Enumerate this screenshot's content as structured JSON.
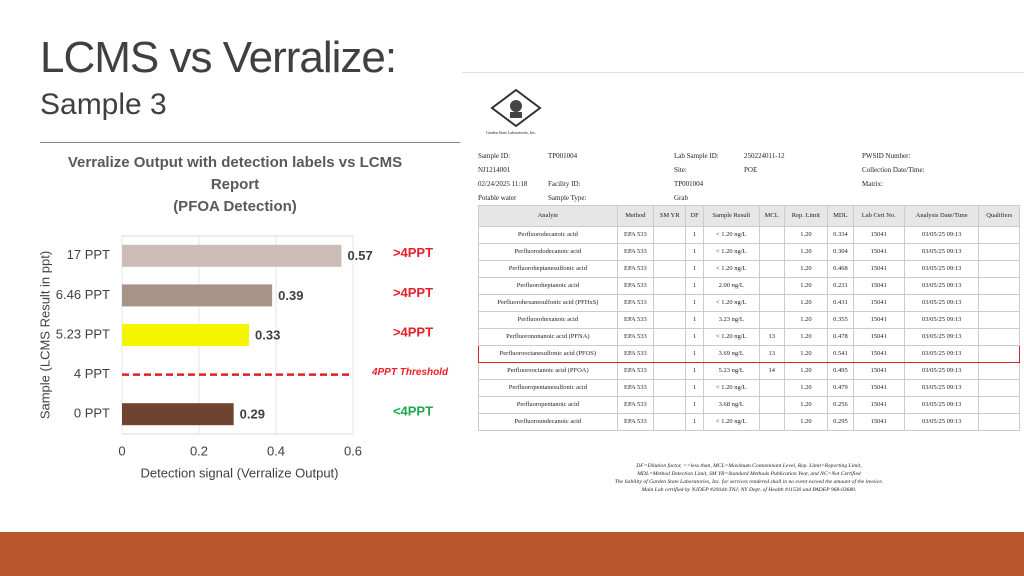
{
  "slide": {
    "title": "LCMS vs Verralize:",
    "subtitle": "Sample 3"
  },
  "chart_data": {
    "type": "bar",
    "orientation": "horizontal",
    "title": "Verralize Output with detection labels vs LCMS Report\n(PFOA Detection)",
    "xlabel": "Detection signal (Verralize Output)",
    "ylabel": "Sample (LCMS Result in ppt)",
    "categories": [
      "17 PPT",
      "6.46 PPT",
      "5.23 PPT",
      "4 PPT",
      "0 PPT"
    ],
    "values": [
      0.57,
      0.39,
      0.33,
      null,
      0.29
    ],
    "colors": [
      "#cbbdb5",
      "#a99288",
      "#f5f500",
      null,
      "#6e4330"
    ],
    "threshold_color": "#e02020",
    "annotations": [
      {
        "text": ">4PPT",
        "color": "#e8202a"
      },
      {
        "text": ">4PPT",
        "color": "#e8202a"
      },
      {
        "text": ">4PPT",
        "color": "#e8202a"
      },
      {
        "text": "4PPT Threshold",
        "color": "#e8202a",
        "italic": true
      },
      {
        "text": "<4PPT",
        "color": "#1aa84a"
      }
    ],
    "xlim": [
      0,
      0.6
    ],
    "xticks": [
      0,
      0.2,
      0.4,
      0.6
    ],
    "grid": true
  },
  "report": {
    "lab": "Garden State Laboratories, Inc.",
    "info": [
      {
        "label": "Sample ID:",
        "value": "TP001004"
      },
      {
        "label": "Lab Sample ID:",
        "value": "250224011-12"
      },
      {
        "label": "PWSID Number:",
        "value": "NJ1214001"
      },
      {
        "label": "Site:",
        "value": "POE"
      },
      {
        "label": "Collection Date/Time:",
        "value": "02/24/2025   11:18"
      },
      {
        "label": "Facility ID:",
        "value": "TP001004"
      },
      {
        "label": "Matrix:",
        "value": "Potable water"
      },
      {
        "label": "Sample Type:",
        "value": "Grab"
      }
    ],
    "table": {
      "columns": [
        "Analyte",
        "Method",
        "SM YR",
        "DF",
        "Sample Result",
        "MCL",
        "Rep. Limit",
        "MDL",
        "Lab Cert No.",
        "Analysis Date/Time",
        "Qualifiers"
      ],
      "rows": [
        {
          "cells": [
            "Perfluorodecanoic acid",
            "EPA 533",
            null,
            "1",
            "< 1.20 ng/L",
            null,
            "1.20",
            "0.334",
            "15041",
            "03/05/25 09:13",
            null
          ]
        },
        {
          "cells": [
            "Perfluorododecanoic acid",
            "EPA 533",
            null,
            "1",
            "< 1.20 ng/L",
            null,
            "1.20",
            "0.304",
            "15041",
            "03/05/25 09:13",
            null
          ]
        },
        {
          "cells": [
            "Perfluoroheptanesulfonic acid",
            "EPA 533",
            null,
            "1",
            "< 1.20 ng/L",
            null,
            "1.20",
            "0.468",
            "15041",
            "03/05/25 09:13",
            null
          ]
        },
        {
          "cells": [
            "Perfluoroheptanoic acid",
            "EPA 533",
            null,
            "1",
            "2.00 ng/L",
            null,
            "1.20",
            "0.231",
            "15041",
            "03/05/25 09:13",
            null
          ]
        },
        {
          "cells": [
            "Perfluorohexanesulfonic acid (PFHxS)",
            "EPA 533",
            null,
            "1",
            "< 1.20 ng/L",
            null,
            "1.20",
            "0.431",
            "15041",
            "03/05/25 09:13",
            null
          ]
        },
        {
          "cells": [
            "Perfluorohexanoic acid",
            "EPA 533",
            null,
            "1",
            "3.23 ng/L",
            null,
            "1.20",
            "0.355",
            "15041",
            "03/05/25 09:13",
            null
          ]
        },
        {
          "cells": [
            "Perfluorononanoic acid (PFNA)",
            "EPA 533",
            null,
            "1",
            "< 1.20 ng/L",
            "13",
            "1.20",
            "0.478",
            "15041",
            "03/05/25 09:13",
            null
          ]
        },
        {
          "cells": [
            "Perfluorooctanesulfonic acid (PFOS)",
            "EPA 533",
            null,
            "1",
            "3.69 ng/L",
            "13",
            "1.20",
            "0.541",
            "15041",
            "03/05/25 09:13",
            null
          ],
          "highlighted": true
        },
        {
          "cells": [
            "Perfluorooctanoic acid (PFOA)",
            "EPA 533",
            null,
            "1",
            "5.23 ng/L",
            "14",
            "1.20",
            "0.495",
            "15041",
            "03/05/25 09:13",
            null
          ]
        },
        {
          "cells": [
            "Perfluoropentanesulfonic acid",
            "EPA 533",
            null,
            "1",
            "< 1.20 ng/L",
            null,
            "1.20",
            "0.479",
            "15041",
            "03/05/25 09:13",
            null
          ]
        },
        {
          "cells": [
            "Perfluoropentanoic acid",
            "EPA 533",
            null,
            "1",
            "3.68 ng/L",
            null,
            "1.20",
            "0.256",
            "15041",
            "03/05/25 09:13",
            null
          ]
        },
        {
          "cells": [
            "Perfluoroundecanoic acid",
            "EPA 533",
            null,
            "1",
            "< 1.20 ng/L",
            null,
            "1.20",
            "0.295",
            "15041",
            "03/05/25 09:13",
            null
          ]
        }
      ]
    },
    "footnotes": [
      "DF=Dilution factor, <=less than, MCL=Maximum Contaminant Level, Rep. Limit=Reporting Limit,",
      "MDL=Method Detection Limit, SM YR=Standard Methods Publication Year, and NC=Not Certified",
      "The liability of Garden State Laboratories, Inc. for services rendered shall in no event exceed the amount of the invoice.",
      "Main Lab certified by NJDEP #20044-TNJ, NY Dept. of Health #11530 and PADEP 968-03680."
    ]
  }
}
